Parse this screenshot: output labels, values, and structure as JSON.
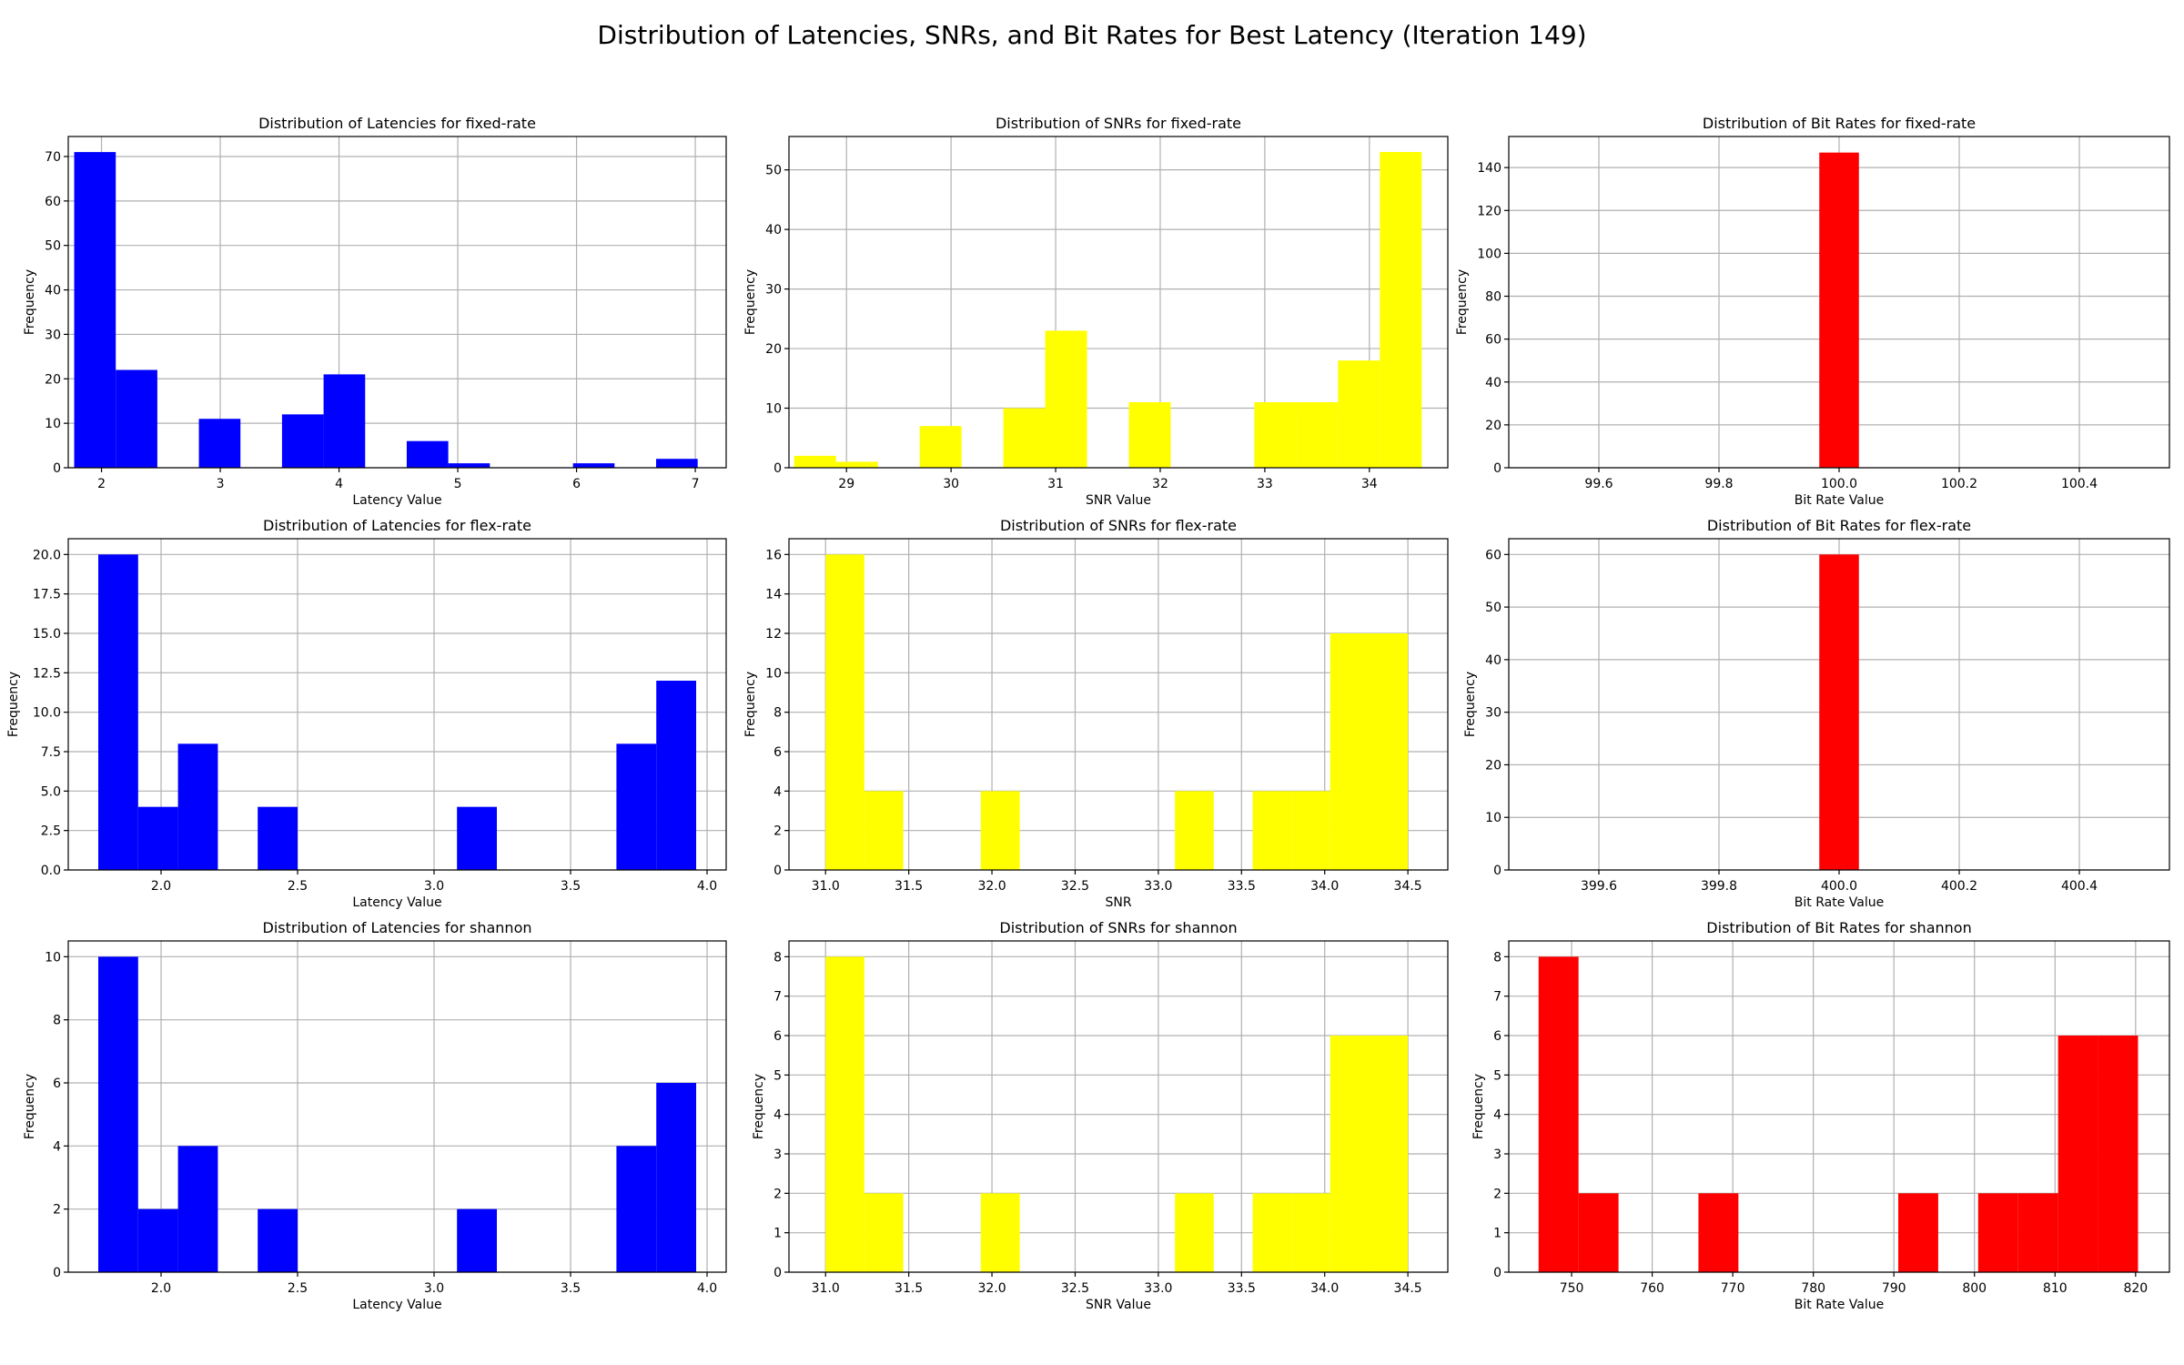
{
  "suptitle": "Distribution of Latencies, SNRs, and Bit Rates for Best Latency (Iteration 149)",
  "chart_data": [
    {
      "type": "bar",
      "title": "Distribution of Latencies for fixed-rate",
      "xlabel": "Latency Value",
      "ylabel": "Frequency",
      "color": "#0000ff",
      "xlim": [
        1.72,
        7.26
      ],
      "ylim": [
        0,
        74.5
      ],
      "xticks": [
        2,
        3,
        4,
        5,
        6,
        7
      ],
      "yticks": [
        0,
        10,
        20,
        30,
        40,
        50,
        60,
        70
      ],
      "ytick_labels": [
        "0",
        "10",
        "20",
        "30",
        "40",
        "50",
        "60",
        "70"
      ],
      "bin_edges": [
        1.77,
        2.12,
        2.47,
        2.82,
        3.17,
        3.52,
        3.87,
        4.22,
        4.57,
        4.92,
        5.27,
        5.62,
        5.97,
        6.32,
        6.67,
        7.02
      ],
      "values": [
        71,
        22,
        0,
        11,
        0,
        12,
        21,
        0,
        6,
        1,
        0,
        0,
        1,
        0,
        2
      ]
    },
    {
      "type": "bar",
      "title": "Distribution of SNRs for fixed-rate",
      "xlabel": "SNR Value",
      "ylabel": "Frequency",
      "color": "#ffff00",
      "xlim": [
        28.45,
        34.75
      ],
      "ylim": [
        0,
        55.6
      ],
      "xticks": [
        29,
        30,
        31,
        32,
        33,
        34
      ],
      "yticks": [
        0,
        10,
        20,
        30,
        40,
        50
      ],
      "ytick_labels": [
        "0",
        "10",
        "20",
        "30",
        "40",
        "50"
      ],
      "bin_edges": [
        28.5,
        28.9,
        29.3,
        29.7,
        30.1,
        30.5,
        30.9,
        31.3,
        31.7,
        32.1,
        32.5,
        32.9,
        33.3,
        33.7,
        34.1,
        34.5
      ],
      "values": [
        2,
        1,
        0,
        7,
        0,
        10,
        23,
        0,
        11,
        0,
        0,
        11,
        11,
        18,
        53
      ]
    },
    {
      "type": "bar",
      "title": "Distribution of Bit Rates for fixed-rate",
      "xlabel": "Bit Rate Value",
      "ylabel": "Frequency",
      "color": "#ff0000",
      "xlim": [
        99.45,
        100.55
      ],
      "ylim": [
        0,
        154.5
      ],
      "xticks": [
        99.6,
        99.8,
        100.0,
        100.2,
        100.4
      ],
      "xtick_labels": [
        "99.6",
        "99.8",
        "100.0",
        "100.2",
        "100.4"
      ],
      "yticks": [
        0,
        20,
        40,
        60,
        80,
        100,
        120,
        140
      ],
      "ytick_labels": [
        "0",
        "20",
        "40",
        "60",
        "80",
        "100",
        "120",
        "140"
      ],
      "bin_edges": [
        99.967,
        100.033
      ],
      "values": [
        147
      ]
    },
    {
      "type": "bar",
      "title": "Distribution of Latencies for flex-rate",
      "xlabel": "Latency Value",
      "ylabel": "Frequency",
      "color": "#0000ff",
      "xlim": [
        1.66,
        4.07
      ],
      "ylim": [
        0,
        21
      ],
      "xticks": [
        2.0,
        2.5,
        3.0,
        3.5,
        4.0
      ],
      "xtick_labels": [
        "2.0",
        "2.5",
        "3.0",
        "3.5",
        "4.0"
      ],
      "yticks": [
        0,
        2.5,
        5,
        7.5,
        10,
        12.5,
        15,
        17.5,
        20
      ],
      "ytick_labels": [
        "0.0",
        "2.5",
        "5.0",
        "7.5",
        "10.0",
        "12.5",
        "15.0",
        "17.5",
        "20.0"
      ],
      "bin_edges": [
        1.77,
        1.916,
        2.062,
        2.208,
        2.354,
        2.5,
        2.646,
        2.792,
        2.938,
        3.084,
        3.23,
        3.376,
        3.522,
        3.668,
        3.814,
        3.96
      ],
      "values": [
        20,
        4,
        8,
        0,
        4,
        0,
        0,
        0,
        0,
        4,
        0,
        0,
        0,
        8,
        12
      ]
    },
    {
      "type": "bar",
      "title": "Distribution of SNRs for flex-rate",
      "xlabel": "SNR",
      "ylabel": "Frequency",
      "color": "#ffff00",
      "xlim": [
        30.78,
        34.74
      ],
      "ylim": [
        0,
        16.8
      ],
      "xticks": [
        31.0,
        31.5,
        32.0,
        32.5,
        33.0,
        33.5,
        34.0,
        34.5
      ],
      "xtick_labels": [
        "31.0",
        "31.5",
        "32.0",
        "32.5",
        "33.0",
        "33.5",
        "34.0",
        "34.5"
      ],
      "yticks": [
        0,
        2,
        4,
        6,
        8,
        10,
        12,
        14,
        16
      ],
      "ytick_labels": [
        "0",
        "2",
        "4",
        "6",
        "8",
        "10",
        "12",
        "14",
        "16"
      ],
      "bin_edges": [
        31.0,
        31.233,
        31.467,
        31.7,
        31.933,
        32.167,
        32.4,
        32.633,
        32.867,
        33.1,
        33.333,
        33.567,
        33.8,
        34.033,
        34.267,
        34.5
      ],
      "values": [
        16,
        4,
        0,
        0,
        4,
        0,
        0,
        0,
        0,
        4,
        0,
        4,
        4,
        12,
        12
      ]
    },
    {
      "type": "bar",
      "title": "Distribution of Bit Rates for flex-rate",
      "xlabel": "Bit Rate Value",
      "ylabel": "Frequency",
      "color": "#ff0000",
      "xlim": [
        399.45,
        400.55
      ],
      "ylim": [
        0,
        63
      ],
      "xticks": [
        399.6,
        399.8,
        400.0,
        400.2,
        400.4
      ],
      "xtick_labels": [
        "399.6",
        "399.8",
        "400.0",
        "400.2",
        "400.4"
      ],
      "yticks": [
        0,
        10,
        20,
        30,
        40,
        50,
        60
      ],
      "ytick_labels": [
        "0",
        "10",
        "20",
        "30",
        "40",
        "50",
        "60"
      ],
      "bin_edges": [
        399.967,
        400.033
      ],
      "values": [
        60
      ]
    },
    {
      "type": "bar",
      "title": "Distribution of Latencies for shannon",
      "xlabel": "Latency Value",
      "ylabel": "Frequency",
      "color": "#0000ff",
      "xlim": [
        1.66,
        4.07
      ],
      "ylim": [
        0,
        10.5
      ],
      "xticks": [
        2.0,
        2.5,
        3.0,
        3.5,
        4.0
      ],
      "xtick_labels": [
        "2.0",
        "2.5",
        "3.0",
        "3.5",
        "4.0"
      ],
      "yticks": [
        0,
        2,
        4,
        6,
        8,
        10
      ],
      "ytick_labels": [
        "0",
        "2",
        "4",
        "6",
        "8",
        "10"
      ],
      "bin_edges": [
        1.77,
        1.916,
        2.062,
        2.208,
        2.354,
        2.5,
        2.646,
        2.792,
        2.938,
        3.084,
        3.23,
        3.376,
        3.522,
        3.668,
        3.814,
        3.96
      ],
      "values": [
        10,
        2,
        4,
        0,
        2,
        0,
        0,
        0,
        0,
        2,
        0,
        0,
        0,
        4,
        6
      ]
    },
    {
      "type": "bar",
      "title": "Distribution of SNRs for shannon",
      "xlabel": "SNR Value",
      "ylabel": "Frequency",
      "color": "#ffff00",
      "xlim": [
        30.78,
        34.74
      ],
      "ylim": [
        0,
        8.4
      ],
      "xticks": [
        31.0,
        31.5,
        32.0,
        32.5,
        33.0,
        33.5,
        34.0,
        34.5
      ],
      "xtick_labels": [
        "31.0",
        "31.5",
        "32.0",
        "32.5",
        "33.0",
        "33.5",
        "34.0",
        "34.5"
      ],
      "yticks": [
        0,
        1,
        2,
        3,
        4,
        5,
        6,
        7,
        8
      ],
      "ytick_labels": [
        "0",
        "1",
        "2",
        "3",
        "4",
        "5",
        "6",
        "7",
        "8"
      ],
      "bin_edges": [
        31.0,
        31.233,
        31.467,
        31.7,
        31.933,
        32.167,
        32.4,
        32.633,
        32.867,
        33.1,
        33.333,
        33.567,
        33.8,
        34.033,
        34.267,
        34.5
      ],
      "values": [
        8,
        2,
        0,
        0,
        2,
        0,
        0,
        0,
        0,
        2,
        0,
        2,
        2,
        6,
        6
      ]
    },
    {
      "type": "bar",
      "title": "Distribution of Bit Rates for shannon",
      "xlabel": "Bit Rate Value",
      "ylabel": "Frequency",
      "color": "#ff0000",
      "xlim": [
        742.2,
        824.2
      ],
      "ylim": [
        0,
        8.4
      ],
      "xticks": [
        750,
        760,
        770,
        780,
        790,
        800,
        810,
        820
      ],
      "yticks": [
        0,
        1,
        2,
        3,
        4,
        5,
        6,
        7,
        8
      ],
      "ytick_labels": [
        "0",
        "1",
        "2",
        "3",
        "4",
        "5",
        "6",
        "7",
        "8"
      ],
      "bin_edges": [
        745.9,
        750.86,
        755.82,
        760.78,
        765.74,
        770.7,
        775.66,
        780.62,
        785.58,
        790.54,
        795.5,
        800.46,
        805.42,
        810.38,
        815.34,
        820.3
      ],
      "values": [
        8,
        2,
        0,
        0,
        2,
        0,
        0,
        0,
        0,
        2,
        0,
        2,
        2,
        6,
        6
      ]
    }
  ]
}
